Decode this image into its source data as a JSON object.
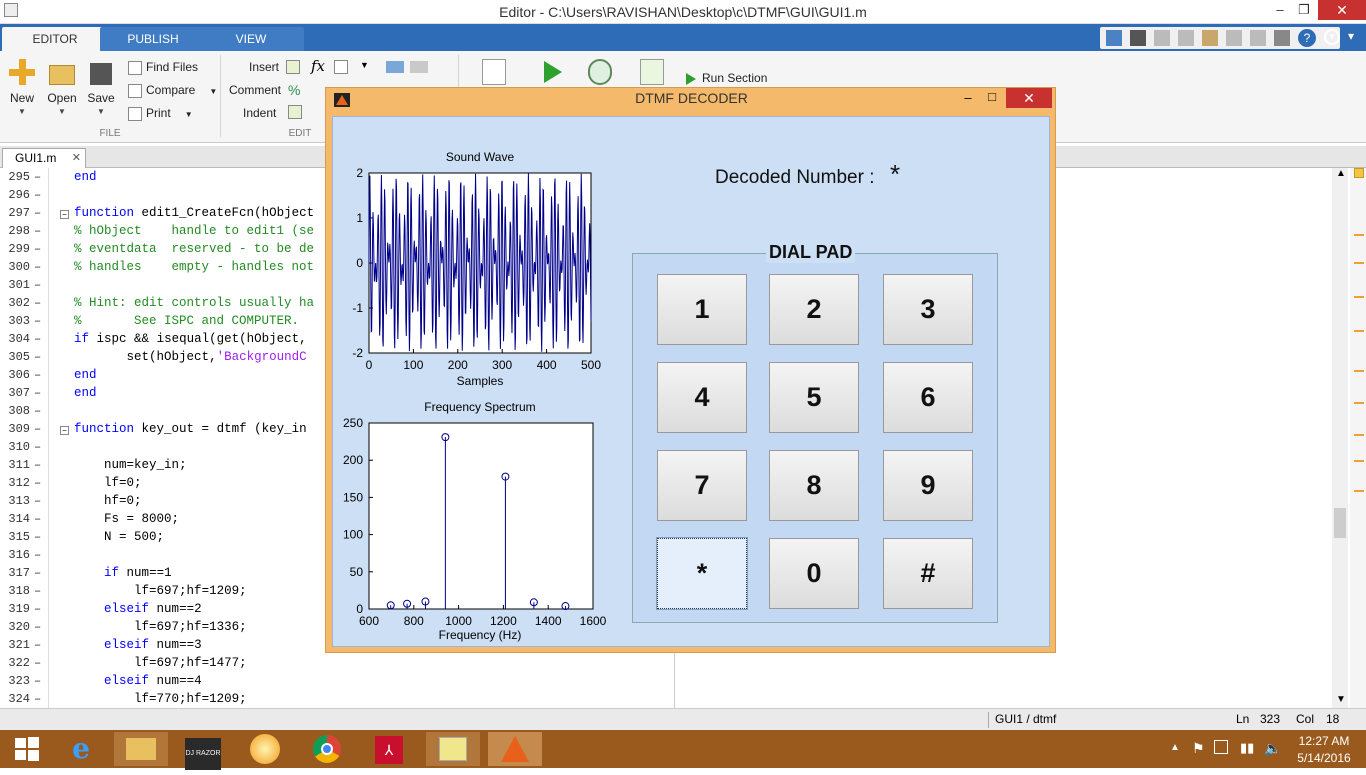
{
  "window": {
    "title": "Editor - C:\\Users\\RAVISHAN\\Desktop\\c\\DTMF\\GUI\\GUI1.m"
  },
  "tabs": [
    {
      "label": "EDITOR"
    },
    {
      "label": "PUBLISH"
    },
    {
      "label": "VIEW"
    }
  ],
  "ribbon": {
    "new": "New",
    "open": "Open",
    "save": "Save",
    "find_files": "Find Files",
    "compare": "Compare",
    "print": "Print",
    "file_group": "FILE",
    "insert": "Insert",
    "comment": "Comment",
    "indent": "Indent",
    "edit_group": "EDIT",
    "run_section": "Run Section"
  },
  "file_tab": {
    "label": "GUI1.m"
  },
  "code_lines": [
    {
      "n": "295",
      "text": "end"
    },
    {
      "n": "296",
      "text": ""
    },
    {
      "n": "297",
      "text": "function edit1_CreateFcn(hObject"
    },
    {
      "n": "298",
      "text": "% hObject    handle to edit1 (se"
    },
    {
      "n": "299",
      "text": "% eventdata  reserved - to be de"
    },
    {
      "n": "300",
      "text": "% handles    empty - handles not"
    },
    {
      "n": "301",
      "text": ""
    },
    {
      "n": "302",
      "text": "% Hint: edit controls usually ha"
    },
    {
      "n": "303",
      "text": "%       See ISPC and COMPUTER."
    },
    {
      "n": "304",
      "text": "if ispc && isequal(get(hObject,"
    },
    {
      "n": "305",
      "text": "       set(hObject,'BackgroundC"
    },
    {
      "n": "306",
      "text": "end"
    },
    {
      "n": "307",
      "text": "end"
    },
    {
      "n": "308",
      "text": ""
    },
    {
      "n": "309",
      "text": "function key_out = dtmf (key_in"
    },
    {
      "n": "310",
      "text": ""
    },
    {
      "n": "311",
      "text": "    num=key_in;"
    },
    {
      "n": "312",
      "text": "    lf=0;"
    },
    {
      "n": "313",
      "text": "    hf=0;"
    },
    {
      "n": "314",
      "text": "    Fs = 8000;"
    },
    {
      "n": "315",
      "text": "    N = 500;"
    },
    {
      "n": "316",
      "text": ""
    },
    {
      "n": "317",
      "text": "    if num==1"
    },
    {
      "n": "318",
      "text": "        lf=697;hf=1209;"
    },
    {
      "n": "319",
      "text": "    elseif num==2"
    },
    {
      "n": "320",
      "text": "        lf=697;hf=1336;"
    },
    {
      "n": "321",
      "text": "    elseif num==3"
    },
    {
      "n": "322",
      "text": "        lf=697;hf=1477;"
    },
    {
      "n": "323",
      "text": "    elseif num==4"
    },
    {
      "n": "324",
      "text": "        lf=770;hf=1209;"
    }
  ],
  "status": {
    "function": "GUI1 / dtmf",
    "ln_label": "Ln",
    "ln": "323",
    "col_label": "Col",
    "col": "18"
  },
  "taskbar": {
    "razor_label": "DJ RAZOR",
    "time": "12:27 AM",
    "date": "5/14/2016"
  },
  "figure": {
    "title": "DTMF DECODER",
    "decoded_label": "Decoded Number :",
    "decoded_value": "*",
    "dialpad_title": "DIAL PAD",
    "keys": [
      "1",
      "2",
      "3",
      "4",
      "5",
      "6",
      "7",
      "8",
      "9",
      "*",
      "0",
      "#"
    ]
  },
  "chart_data": [
    {
      "type": "line",
      "title": "Sound Wave",
      "xlabel": "Samples",
      "ylabel": "",
      "xlim": [
        0,
        500
      ],
      "ylim": [
        -2,
        2
      ],
      "xticks": [
        "0",
        "100",
        "200",
        "300",
        "400",
        "500"
      ],
      "yticks": [
        "2",
        "1",
        "0",
        "-1",
        "-2"
      ],
      "signal": {
        "description_freqs_hz": [
          941,
          1209
        ],
        "sample_rate": 8000,
        "samples": 500
      },
      "series": [
        {
          "color": "#00008b"
        }
      ]
    },
    {
      "type": "stem",
      "title": "Frequency Spectrum",
      "xlabel": "Frequency (Hz)",
      "ylabel": "",
      "xlim": [
        600,
        1600
      ],
      "ylim": [
        0,
        250
      ],
      "xticks": [
        "600",
        "800",
        "1000",
        "1200",
        "1400",
        "1600"
      ],
      "yticks": [
        "250",
        "200",
        "150",
        "100",
        "50",
        "0"
      ],
      "x": [
        697,
        770,
        852,
        941,
        1209,
        1336,
        1477
      ],
      "values": [
        5,
        7,
        10,
        231,
        178,
        9,
        4
      ],
      "series": [
        {
          "color": "#00008b"
        }
      ]
    }
  ]
}
